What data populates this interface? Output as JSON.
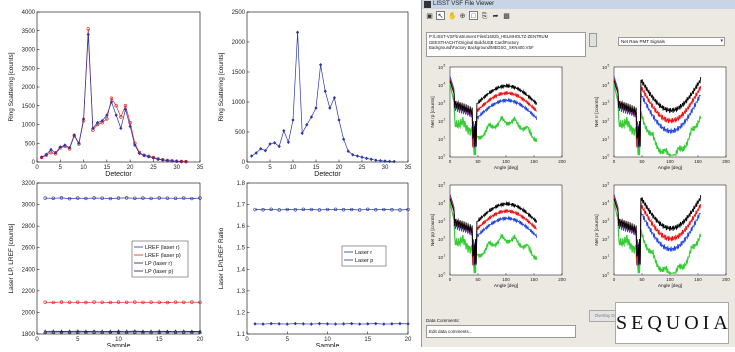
{
  "left_charts": {
    "ring_counts": {
      "ylabel": "Ring Scattering [counts]",
      "xlabel": "Detector",
      "xticks": [
        "0",
        "5",
        "10",
        "15",
        "20",
        "25",
        "30",
        "35"
      ],
      "yticks": [
        "0",
        "500",
        "1000",
        "1500",
        "2000",
        "2500",
        "3000",
        "3500",
        "4000"
      ]
    },
    "ring_counts_2": {
      "ylabel": "Ring Scattering [counts]",
      "xlabel": "Detector",
      "xticks": [
        "0",
        "5",
        "10",
        "15",
        "20",
        "25",
        "30",
        "35"
      ],
      "yticks": [
        "0",
        "500",
        "1000",
        "1500",
        "2000",
        "2500"
      ]
    },
    "laser_counts": {
      "ylabel": "Laser LP, LREF [counts]",
      "xlabel": "Sample",
      "xticks": [
        "0",
        "5",
        "10",
        "15",
        "20"
      ],
      "yticks": [
        "1800",
        "2000",
        "2200",
        "2400",
        "2600",
        "2800",
        "3000",
        "3200"
      ],
      "legend": [
        "LREF (laser r)",
        "LREF (laser p)",
        "LP (laser r)",
        "LP (laser p)"
      ]
    },
    "laser_ratio": {
      "ylabel": "Laser LP/LREF Ratio",
      "xlabel": "Sample",
      "xticks": [
        "0",
        "5",
        "10",
        "15",
        "20"
      ],
      "yticks": [
        "1.1",
        "1.2",
        "1.3",
        "1.4",
        "1.5",
        "1.6",
        "1.7",
        "1.8"
      ],
      "legend": [
        "Laser r",
        "Laser p"
      ]
    }
  },
  "viewer": {
    "title": "LISST VSF File Viewer",
    "path_lines": [
      "P:\\LISST-VSF\\Instrument Files\\1602b_HELMHOLTZ-ZENTRUM",
      "GEESTHACHT\\Original Build\\USB Card\\Factory",
      "Background\\Factory Background\\MEDSG_SKN400.VSF"
    ],
    "signal_select": "Net Raw PMT Signals",
    "data_comments_label": "Data Comments:",
    "comments_value": "Edit data comments...",
    "overlay_button": "Overlay Data From Another File...",
    "logo": "SEQUOIA",
    "plots": {
      "p1": {
        "ylabel": "Net rp [counts]",
        "xlabel": "Angle [deg]"
      },
      "p2": {
        "ylabel": "Net rr [counts]",
        "xlabel": "Angle [deg]"
      },
      "p3": {
        "ylabel": "Net pp [counts]",
        "xlabel": "Angle [deg]"
      },
      "p4": {
        "ylabel": "Net pr [counts]",
        "xlabel": "Angle [deg]"
      }
    },
    "plot_xticks": [
      "0",
      "50",
      "100",
      "150",
      "200"
    ],
    "plot_yticks_log": [
      "10",
      "10",
      "10",
      "10",
      "10",
      "10"
    ],
    "plot_yticks_exp": [
      "5",
      "4",
      "3",
      "2",
      "1",
      "0"
    ]
  },
  "chart_data": [
    {
      "type": "line",
      "title": "",
      "xlabel": "Detector",
      "ylabel": "Ring Scattering [counts]",
      "xlim": [
        0,
        35
      ],
      "ylim": [
        0,
        4000
      ],
      "x": [
        1,
        2,
        3,
        4,
        5,
        6,
        7,
        8,
        9,
        10,
        11,
        12,
        13,
        14,
        15,
        16,
        17,
        18,
        19,
        20,
        21,
        22,
        23,
        24,
        25,
        26,
        27,
        28,
        29,
        30,
        31,
        32
      ],
      "series": [
        {
          "values": [
            120,
            180,
            250,
            220,
            380,
            420,
            350,
            700,
            480,
            1100,
            3550,
            850,
            1000,
            1050,
            1150,
            1700,
            1500,
            1200,
            1500,
            1050,
            500,
            250,
            180,
            150,
            120,
            80,
            60,
            40,
            30,
            20,
            15,
            10
          ]
        },
        {
          "values": [
            130,
            200,
            330,
            250,
            400,
            450,
            380,
            720,
            500,
            1150,
            3400,
            900,
            1050,
            1100,
            1250,
            1600,
            1250,
            900,
            1400,
            950,
            450,
            230,
            170,
            140,
            110,
            75,
            55,
            35,
            25,
            18,
            12,
            8
          ]
        }
      ]
    },
    {
      "type": "line",
      "title": "",
      "xlabel": "Detector",
      "ylabel": "Ring Scattering [counts]",
      "xlim": [
        0,
        35
      ],
      "ylim": [
        0,
        2500
      ],
      "x": [
        1,
        2,
        3,
        4,
        5,
        6,
        7,
        8,
        9,
        10,
        11,
        12,
        13,
        14,
        15,
        16,
        17,
        18,
        19,
        20,
        21,
        22,
        23,
        24,
        25,
        26,
        27,
        28,
        29,
        30,
        31,
        32
      ],
      "series": [
        {
          "values": [
            100,
            150,
            220,
            190,
            300,
            320,
            260,
            520,
            330,
            700,
            2160,
            480,
            620,
            750,
            900,
            1620,
            1180,
            900,
            1070,
            700,
            380,
            180,
            120,
            100,
            80,
            60,
            45,
            30,
            22,
            15,
            10,
            8
          ]
        }
      ]
    },
    {
      "type": "line",
      "title": "",
      "xlabel": "Sample",
      "ylabel": "Laser LP, LREF [counts]",
      "xlim": [
        0,
        20
      ],
      "ylim": [
        1800,
        3200
      ],
      "x": [
        1,
        2,
        3,
        4,
        5,
        6,
        7,
        8,
        9,
        10,
        11,
        12,
        13,
        14,
        15,
        16,
        17,
        18,
        19,
        20
      ],
      "series": [
        {
          "name": "LREF (laser r)",
          "values": [
            3060,
            3058,
            3062,
            3055,
            3060,
            3057,
            3061,
            3059,
            3056,
            3060,
            3062,
            3058,
            3060,
            3057,
            3061,
            3059,
            3058,
            3060,
            3056,
            3060
          ]
        },
        {
          "name": "LREF (laser p)",
          "values": [
            2095,
            2093,
            2096,
            2094,
            2095,
            2092,
            2096,
            2094,
            2093,
            2095,
            2094,
            2096,
            2093,
            2095,
            2094,
            2092,
            2095,
            2094,
            2096,
            2093
          ]
        },
        {
          "name": "LP (laser r)",
          "values": [
            1825,
            1826,
            1824,
            1825,
            1827,
            1824,
            1826,
            1825,
            1824,
            1826,
            1825,
            1827,
            1824,
            1825,
            1826,
            1824,
            1825,
            1826,
            1824,
            1825
          ]
        },
        {
          "name": "LP (laser p)",
          "values": [
            1818,
            1817,
            1819,
            1818,
            1817,
            1819,
            1818,
            1817,
            1819,
            1818,
            1817,
            1818,
            1819,
            1817,
            1818,
            1819,
            1817,
            1818,
            1819,
            1818
          ]
        }
      ]
    },
    {
      "type": "line",
      "title": "",
      "xlabel": "Sample",
      "ylabel": "Laser LP/LREF Ratio",
      "xlim": [
        0,
        20
      ],
      "ylim": [
        1.1,
        1.8
      ],
      "x": [
        1,
        2,
        3,
        4,
        5,
        6,
        7,
        8,
        9,
        10,
        11,
        12,
        13,
        14,
        15,
        16,
        17,
        18,
        19,
        20
      ],
      "series": [
        {
          "name": "Laser r",
          "values": [
            1.677,
            1.676,
            1.678,
            1.675,
            1.677,
            1.676,
            1.678,
            1.677,
            1.675,
            1.677,
            1.678,
            1.676,
            1.677,
            1.675,
            1.678,
            1.676,
            1.677,
            1.676,
            1.675,
            1.677
          ]
        },
        {
          "name": "Laser p",
          "values": [
            1.147,
            1.146,
            1.148,
            1.147,
            1.146,
            1.148,
            1.147,
            1.146,
            1.148,
            1.147,
            1.146,
            1.147,
            1.148,
            1.146,
            1.147,
            1.148,
            1.146,
            1.147,
            1.148,
            1.147
          ]
        }
      ]
    }
  ],
  "colors": {
    "series_blue": "#2b35a8",
    "series_red": "#e02020",
    "series_dark": "#1c1c52",
    "vsf_black": "#000000",
    "vsf_red": "#ee1111",
    "vsf_blue": "#2244dd",
    "vsf_green": "#33cc33"
  }
}
